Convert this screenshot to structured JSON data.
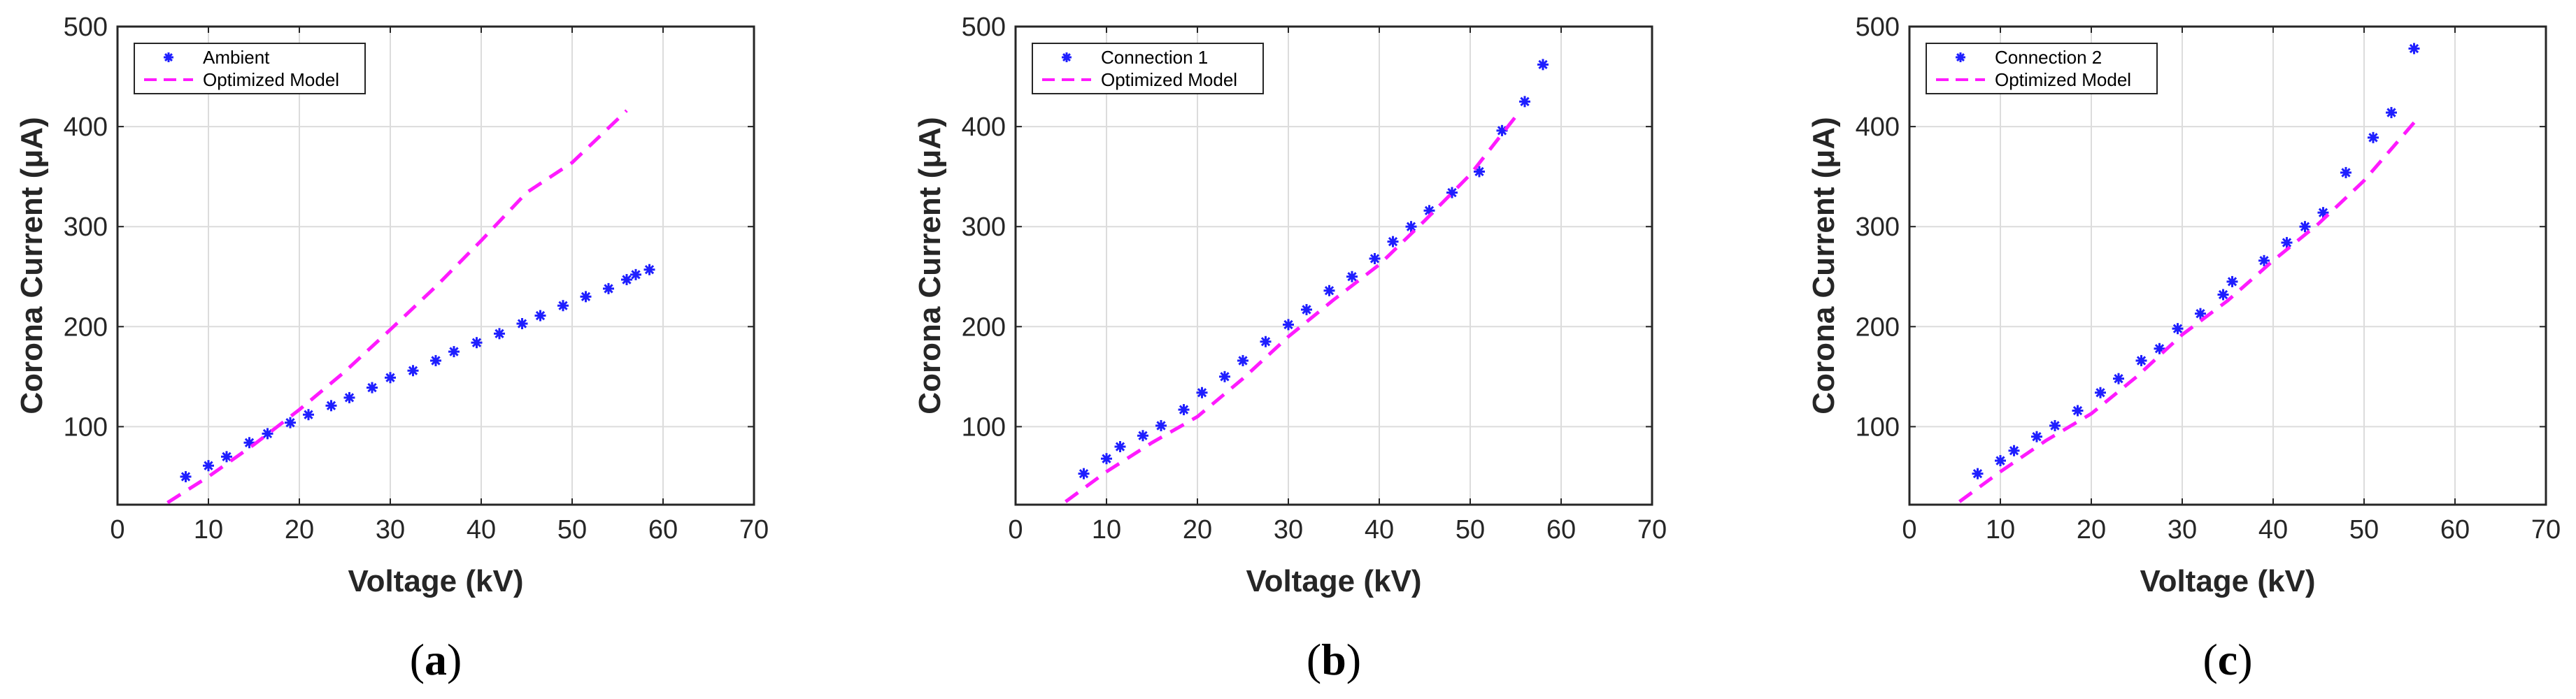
{
  "chart_data": [
    {
      "type": "scatter",
      "caption": "a",
      "xlabel": "Voltage (kV)",
      "ylabel": "Corona Current (μA)",
      "xlim": [
        0,
        70
      ],
      "ylim": [
        22,
        500
      ],
      "xticks": [
        "0",
        "10",
        "20",
        "30",
        "40",
        "50",
        "60",
        "70"
      ],
      "yticks": [
        "100",
        "200",
        "300",
        "400",
        "500"
      ],
      "grid": true,
      "legend_position": "top-left",
      "series": [
        {
          "name": "Ambient",
          "kind": "markers",
          "x": [
            7.5,
            10,
            12,
            14.5,
            16.5,
            19,
            21,
            23.5,
            25.5,
            28,
            30,
            32.5,
            35,
            37,
            39.5,
            42,
            44.5,
            46.5,
            49,
            51.5,
            54,
            56,
            57,
            58.5
          ],
          "y": [
            50,
            61,
            70,
            84,
            93,
            104,
            112,
            121,
            129,
            139,
            149,
            156,
            166,
            175,
            184,
            193,
            203,
            211,
            221,
            230,
            238,
            247,
            252,
            257
          ]
        },
        {
          "name": "Optimized Model",
          "kind": "dashed-line",
          "x": [
            5.5,
            10,
            15,
            20,
            25,
            30,
            35,
            40,
            45,
            50,
            56
          ],
          "y": [
            24,
            50,
            82,
            117,
            155,
            197,
            240,
            286,
            334,
            364,
            416
          ]
        }
      ]
    },
    {
      "type": "scatter",
      "caption": "b",
      "xlabel": "Voltage (kV)",
      "ylabel": "Corona Current (μA)",
      "xlim": [
        0,
        70
      ],
      "ylim": [
        22,
        500
      ],
      "xticks": [
        "0",
        "10",
        "20",
        "30",
        "40",
        "50",
        "60",
        "70"
      ],
      "yticks": [
        "100",
        "200",
        "300",
        "400",
        "500"
      ],
      "grid": true,
      "legend_position": "top-left",
      "series": [
        {
          "name": "Connection 1",
          "kind": "markers",
          "x": [
            7.5,
            10,
            11.5,
            14,
            16,
            18.5,
            20.5,
            23,
            25,
            27.5,
            30,
            32,
            34.5,
            37,
            39.5,
            41.5,
            43.5,
            45.5,
            48,
            51,
            53.5,
            56,
            58
          ],
          "y": [
            53,
            68,
            80,
            91,
            101,
            117,
            134,
            150,
            166,
            185,
            202,
            217,
            236,
            250,
            268,
            285,
            300,
            316,
            334,
            355,
            396,
            425,
            462
          ]
        },
        {
          "name": "Optimized Model",
          "kind": "dashed-line",
          "x": [
            5.5,
            10,
            15,
            20,
            25,
            30,
            35,
            40,
            45,
            50,
            55
          ],
          "y": [
            25,
            55,
            84,
            110,
            148,
            190,
            227,
            262,
            306,
            352,
            410
          ]
        }
      ]
    },
    {
      "type": "scatter",
      "caption": "c",
      "xlabel": "Voltage (kV)",
      "ylabel": "Corona Current (μA)",
      "xlim": [
        0,
        70
      ],
      "ylim": [
        22,
        500
      ],
      "xticks": [
        "0",
        "10",
        "20",
        "30",
        "40",
        "50",
        "60",
        "70"
      ],
      "yticks": [
        "100",
        "200",
        "300",
        "400",
        "500"
      ],
      "grid": true,
      "legend_position": "top-left",
      "series": [
        {
          "name": "Connection 2",
          "kind": "markers",
          "x": [
            7.5,
            10,
            11.5,
            14,
            16,
            18.5,
            21,
            23,
            25.5,
            27.5,
            29.5,
            32,
            34.5,
            35.5,
            39,
            41.5,
            43.5,
            45.5,
            48,
            51,
            53,
            55.5
          ],
          "y": [
            53,
            66,
            76,
            90,
            101,
            116,
            134,
            148,
            166,
            178,
            198,
            213,
            232,
            245,
            266,
            284,
            300,
            314,
            354,
            389,
            414,
            478
          ]
        },
        {
          "name": "Optimized Model",
          "kind": "dashed-line",
          "x": [
            5.5,
            10,
            15,
            20,
            25,
            30,
            35,
            40,
            45,
            50,
            55.5
          ],
          "y": [
            25,
            55,
            86,
            113,
            150,
            192,
            226,
            266,
            303,
            346,
            404
          ]
        }
      ]
    }
  ],
  "colors": {
    "marker": "#1f1fff",
    "model": "#ff1aff",
    "axis": "#262626",
    "grid": "#dcdcdc"
  }
}
